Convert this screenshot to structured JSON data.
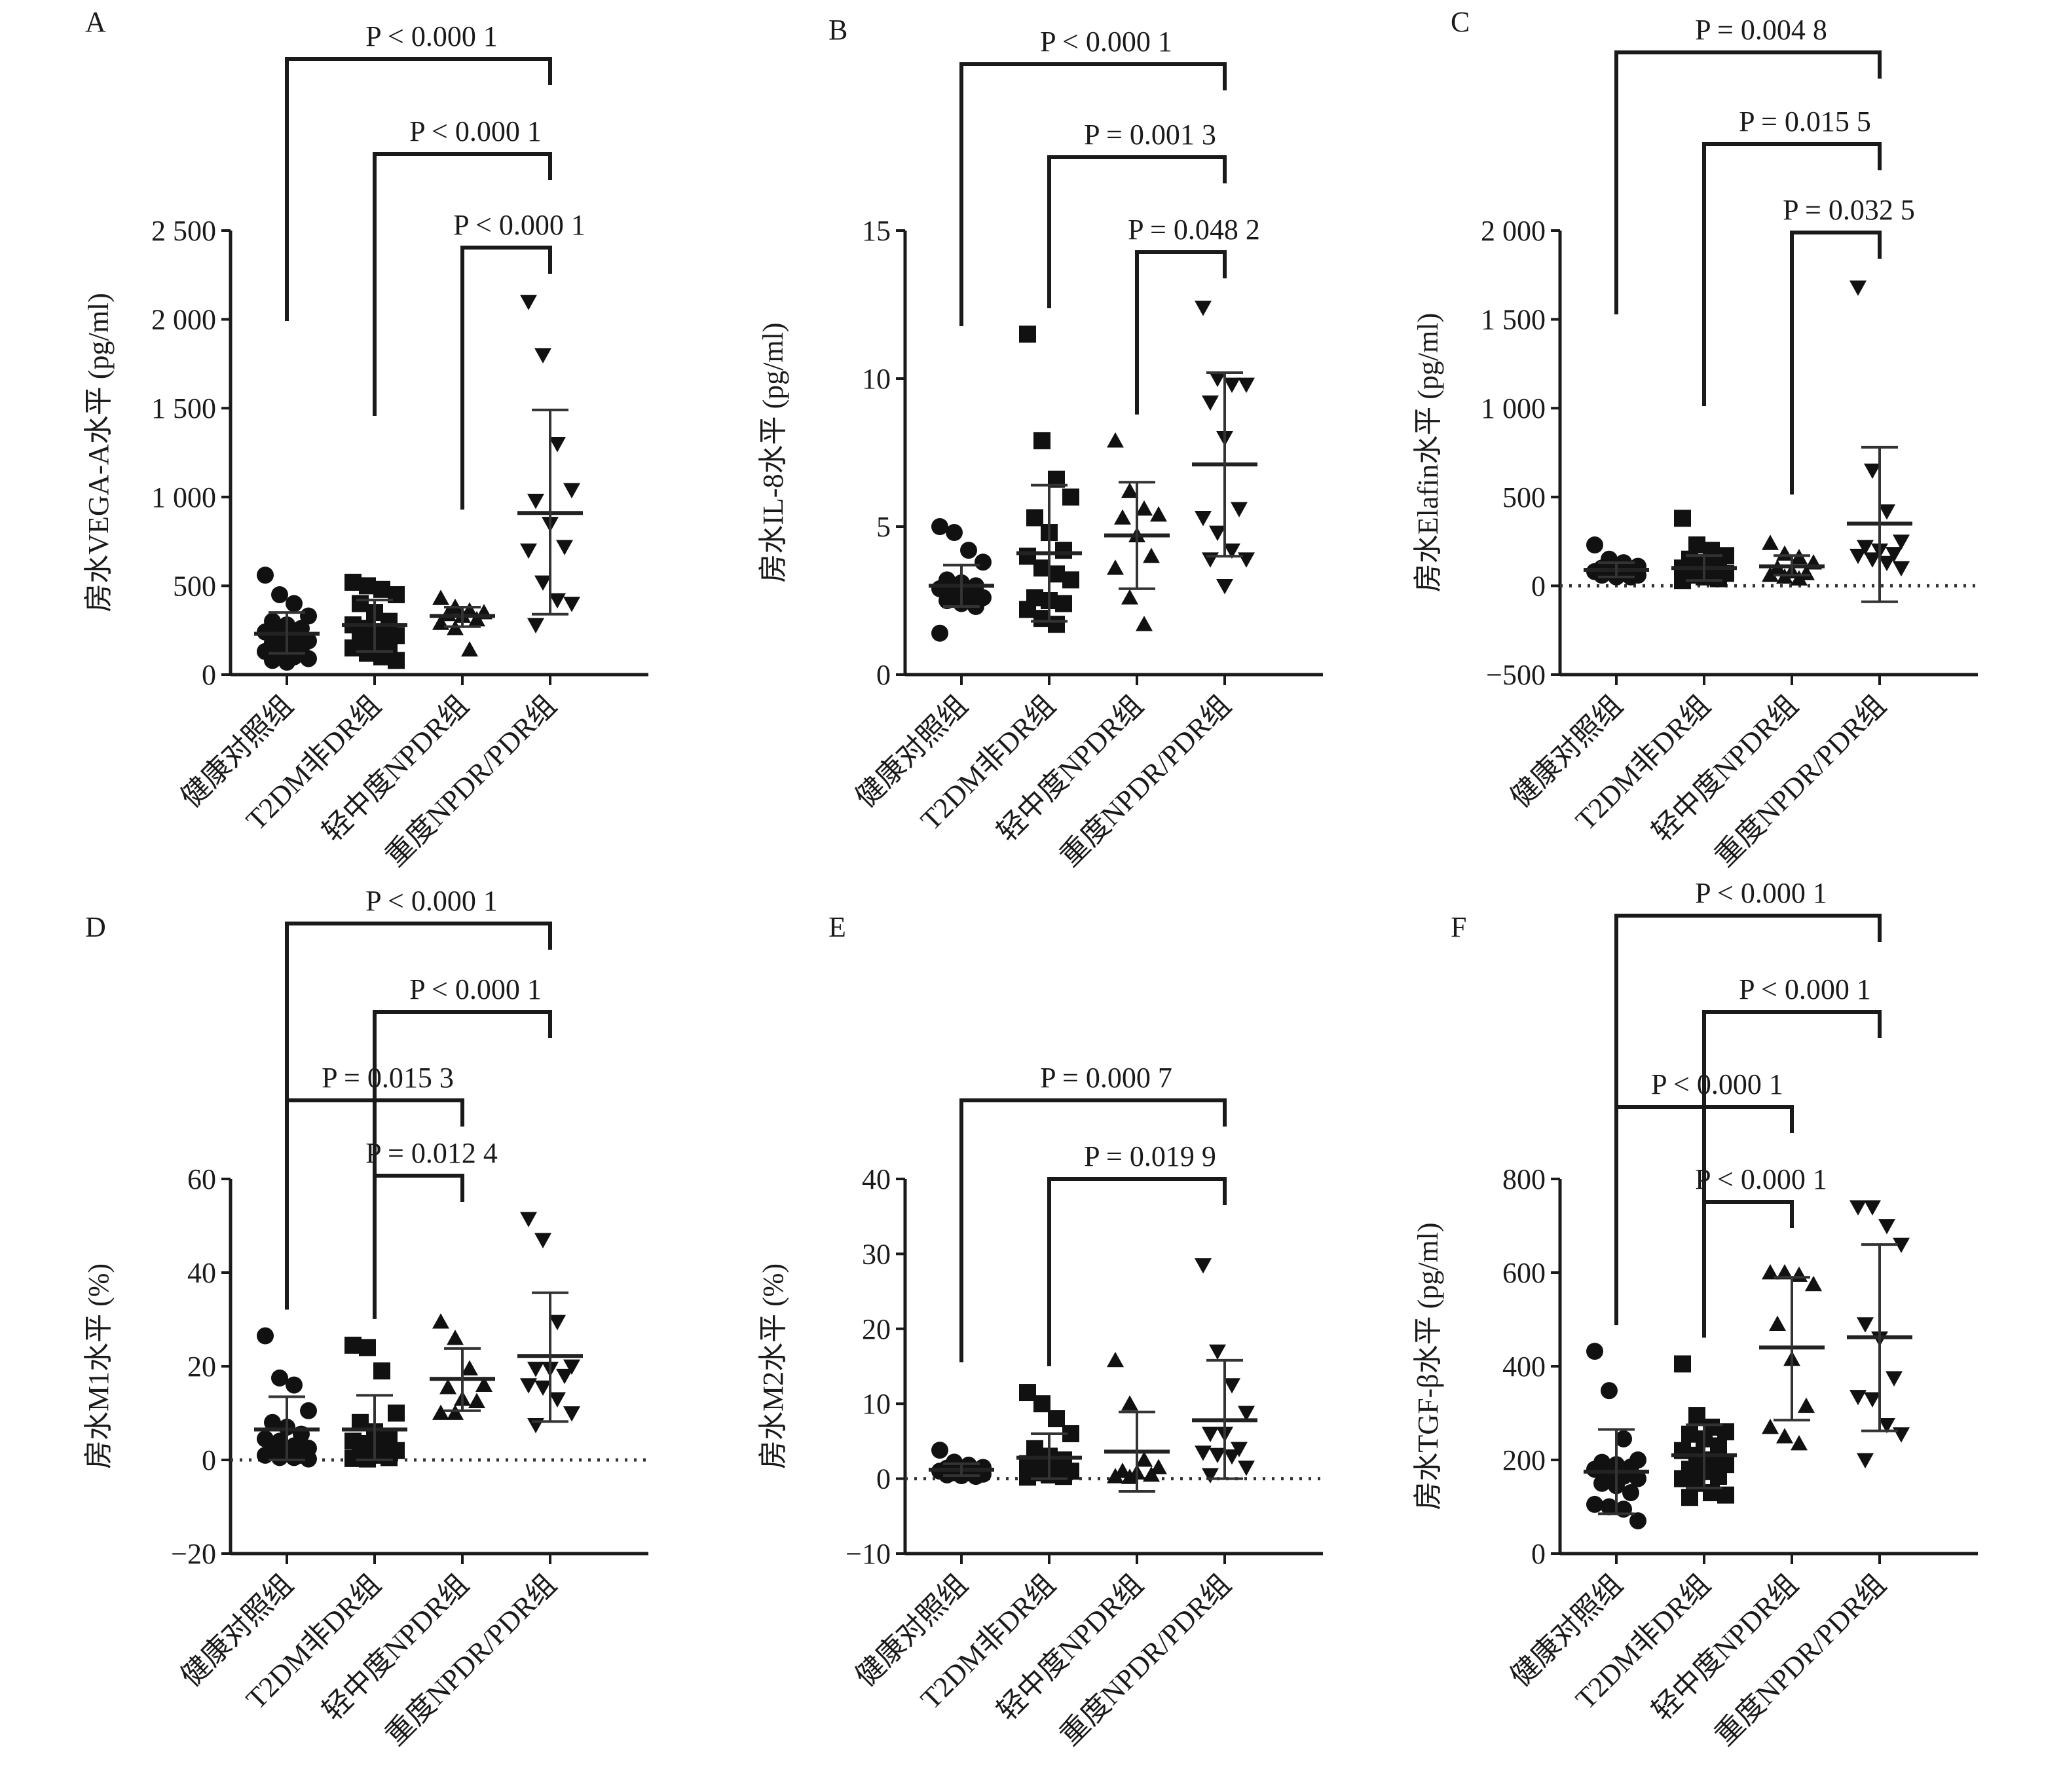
{
  "chart_data": [
    {
      "panel": "A",
      "type": "scatter",
      "ylabel": "房水VEGA-A水平 (pg/ml)",
      "categories": [
        "健康对照组",
        "T2DM非DR组",
        "轻中度NPDR组",
        "重度NPDR/PDR组"
      ],
      "ylim": [
        0,
        2500
      ],
      "yticks": [
        0,
        500,
        1000,
        1500,
        2000,
        2500
      ],
      "ytick_labels": [
        "0",
        "500",
        "1 000",
        "1 500",
        "2 000",
        "2 500"
      ],
      "zero_line": false,
      "groups": [
        {
          "marker": "circle",
          "mean": 230,
          "sd_low": 120,
          "sd_high": 350,
          "points": [
            560,
            450,
            400,
            330,
            300,
            280,
            260,
            240,
            220,
            200,
            190,
            180,
            160,
            150,
            130,
            120,
            100,
            90,
            80,
            70
          ]
        },
        {
          "marker": "square",
          "mean": 280,
          "sd_low": 130,
          "sd_high": 420,
          "points": [
            520,
            500,
            480,
            450,
            400,
            350,
            300,
            280,
            260,
            240,
            220,
            200,
            180,
            170,
            150,
            120,
            100,
            80
          ]
        },
        {
          "marker": "triangle-up",
          "mean": 330,
          "sd_low": 270,
          "sd_high": 380,
          "points": [
            430,
            380,
            360,
            350,
            340,
            330,
            310,
            290,
            260,
            140
          ]
        },
        {
          "marker": "triangle-down",
          "mean": 910,
          "sd_low": 340,
          "sd_high": 1490,
          "points": [
            2100,
            1800,
            1300,
            1040,
            980,
            850,
            720,
            700,
            520,
            420,
            400,
            280
          ]
        }
      ],
      "comparisons": [
        {
          "from": 0,
          "to": 3,
          "label": "P < 0.000 1"
        },
        {
          "from": 1,
          "to": 3,
          "label": "P < 0.000 1"
        },
        {
          "from": 2,
          "to": 3,
          "label": "P < 0.000 1"
        }
      ]
    },
    {
      "panel": "B",
      "type": "scatter",
      "ylabel": "房水IL-8水平 (pg/ml)",
      "categories": [
        "健康对照组",
        "T2DM非DR组",
        "轻中度NPDR组",
        "重度NPDR/PDR组"
      ],
      "ylim": [
        0,
        15
      ],
      "yticks": [
        0,
        5,
        10,
        15
      ],
      "ytick_labels": [
        "0",
        "5",
        "10",
        "15"
      ],
      "zero_line": false,
      "groups": [
        {
          "marker": "circle",
          "mean": 3.0,
          "sd_low": 2.3,
          "sd_high": 3.7,
          "points": [
            5.0,
            4.8,
            4.2,
            3.8,
            3.2,
            3.1,
            3.0,
            2.9,
            2.8,
            2.7,
            2.6,
            2.5,
            2.4,
            2.3,
            1.4
          ]
        },
        {
          "marker": "square",
          "mean": 4.1,
          "sd_low": 1.8,
          "sd_high": 6.4,
          "points": [
            11.5,
            7.9,
            6.6,
            6.0,
            5.3,
            4.8,
            4.2,
            4.0,
            3.6,
            3.4,
            3.2,
            2.6,
            2.5,
            2.4,
            2.2,
            1.9,
            1.7
          ]
        },
        {
          "marker": "triangle-up",
          "mean": 4.7,
          "sd_low": 2.9,
          "sd_high": 6.5,
          "points": [
            7.9,
            6.2,
            5.6,
            5.4,
            5.3,
            4.7,
            4.0,
            3.6,
            2.6,
            1.7
          ]
        },
        {
          "marker": "triangle-down",
          "mean": 7.1,
          "sd_low": 4.0,
          "sd_high": 10.2,
          "points": [
            12.4,
            10.0,
            9.8,
            9.8,
            9.2,
            8.0,
            5.6,
            5.3,
            4.8,
            4.2,
            3.9,
            3.9,
            3.0
          ]
        }
      ],
      "comparisons": [
        {
          "from": 0,
          "to": 3,
          "label": "P < 0.000 1"
        },
        {
          "from": 1,
          "to": 3,
          "label": "P = 0.001 3"
        },
        {
          "from": 2,
          "to": 3,
          "label": "P = 0.048 2"
        }
      ]
    },
    {
      "panel": "C",
      "type": "scatter",
      "ylabel": "房水Elafin水平 (pg/ml)",
      "categories": [
        "健康对照组",
        "T2DM非DR组",
        "轻中度NPDR组",
        "重度NPDR/PDR组"
      ],
      "ylim": [
        -500,
        2000
      ],
      "yticks": [
        -500,
        0,
        500,
        1000,
        1500,
        2000
      ],
      "ytick_labels": [
        "−500",
        "0",
        "500",
        "1 000",
        "1 500",
        "2 000"
      ],
      "zero_line": true,
      "groups": [
        {
          "marker": "circle",
          "mean": 90,
          "sd_low": 50,
          "sd_high": 130,
          "points": [
            230,
            150,
            130,
            110,
            100,
            90,
            90,
            80,
            80,
            70,
            60,
            60,
            50,
            50
          ]
        },
        {
          "marker": "square",
          "mean": 100,
          "sd_low": 30,
          "sd_high": 170,
          "points": [
            380,
            230,
            200,
            170,
            150,
            130,
            110,
            100,
            90,
            80,
            70,
            60,
            50,
            40,
            30
          ]
        },
        {
          "marker": "triangle-up",
          "mean": 110,
          "sd_low": 60,
          "sd_high": 170,
          "points": [
            240,
            180,
            160,
            130,
            100,
            80,
            70,
            60,
            50,
            40
          ]
        },
        {
          "marker": "triangle-down",
          "mean": 350,
          "sd_low": -90,
          "sd_high": 780,
          "points": [
            1680,
            650,
            420,
            250,
            220,
            200,
            180,
            170,
            150,
            130,
            100
          ]
        }
      ],
      "comparisons": [
        {
          "from": 0,
          "to": 3,
          "label": "P = 0.004 8"
        },
        {
          "from": 1,
          "to": 3,
          "label": "P = 0.015 5"
        },
        {
          "from": 2,
          "to": 3,
          "label": "P = 0.032 5"
        }
      ]
    },
    {
      "panel": "D",
      "type": "scatter",
      "ylabel": "房水M1水平 (%)",
      "categories": [
        "健康对照组",
        "T2DM非DR组",
        "轻中度NPDR组",
        "重度NPDR/PDR组"
      ],
      "ylim": [
        -20,
        60
      ],
      "yticks": [
        -20,
        0,
        20,
        40,
        60
      ],
      "ytick_labels": [
        "−20",
        "0",
        "20",
        "40",
        "60"
      ],
      "zero_line": true,
      "groups": [
        {
          "marker": "circle",
          "mean": 6.5,
          "sd_low": 0,
          "sd_high": 13.5,
          "points": [
            26.5,
            17.5,
            16.0,
            10.5,
            8.0,
            7.0,
            5.5,
            4.5,
            4.0,
            3.0,
            2.5,
            2.0,
            1.5,
            1.0,
            1.0,
            0.5,
            0.5,
            0.2
          ]
        },
        {
          "marker": "square",
          "mean": 6.5,
          "sd_low": 0,
          "sd_high": 13.8,
          "points": [
            24.5,
            24.0,
            19.0,
            10.0,
            8.0,
            6.0,
            5.0,
            4.0,
            3.5,
            3.0,
            2.0,
            1.5,
            1.0,
            0.5,
            0.3,
            0.2
          ]
        },
        {
          "marker": "triangle-up",
          "mean": 17.3,
          "sd_low": 10.5,
          "sd_high": 23.8,
          "points": [
            29.5,
            26.0,
            19.5,
            16.0,
            15.5,
            13.0,
            12.5,
            10.0,
            10.0
          ]
        },
        {
          "marker": "triangle-down",
          "mean": 22.2,
          "sd_low": 8.2,
          "sd_high": 35.7,
          "points": [
            51.5,
            47.0,
            29.5,
            20.0,
            19.5,
            19.5,
            18.0,
            16.0,
            15.5,
            13.0,
            10.0,
            7.5
          ]
        }
      ],
      "comparisons": [
        {
          "from": 0,
          "to": 3,
          "label": "P < 0.000 1"
        },
        {
          "from": 1,
          "to": 3,
          "label": "P < 0.000 1"
        },
        {
          "from": 0,
          "to": 2,
          "label": "P = 0.015 3"
        },
        {
          "from": 1,
          "to": 2,
          "label": "P = 0.012 4"
        }
      ]
    },
    {
      "panel": "E",
      "type": "scatter",
      "ylabel": "房水M2水平 (%)",
      "categories": [
        "健康对照组",
        "T2DM非DR组",
        "轻中度NPDR组",
        "重度NPDR/PDR组"
      ],
      "ylim": [
        -10,
        40
      ],
      "yticks": [
        -10,
        0,
        10,
        20,
        30,
        40
      ],
      "ytick_labels": [
        "−10",
        "0",
        "10",
        "20",
        "30",
        "40"
      ],
      "zero_line": true,
      "groups": [
        {
          "marker": "circle",
          "mean": 1.2,
          "sd_low": 0.4,
          "sd_high": 2.0,
          "points": [
            3.8,
            2.2,
            1.8,
            1.5,
            1.4,
            1.2,
            1.0,
            1.0,
            0.8,
            0.8,
            0.6,
            0.5,
            0.4,
            0.3
          ]
        },
        {
          "marker": "square",
          "mean": 2.8,
          "sd_low": 0,
          "sd_high": 6.0,
          "points": [
            11.5,
            10.0,
            8.0,
            6.0,
            4.0,
            3.0,
            2.5,
            2.0,
            1.5,
            1.5,
            1.0,
            0.8,
            0.5,
            0.3,
            0.2
          ]
        },
        {
          "marker": "triangle-up",
          "mean": 3.6,
          "sd_low": -1.7,
          "sd_high": 8.9,
          "points": [
            15.8,
            10.0,
            2.5,
            1.5,
            1.0,
            0.8,
            0.5,
            0.3,
            0.2
          ]
        },
        {
          "marker": "triangle-down",
          "mean": 7.8,
          "sd_low": 0,
          "sd_high": 15.8,
          "points": [
            28.5,
            17.0,
            12.5,
            8.8,
            6.0,
            6.0,
            4.0,
            3.5,
            3.2,
            3.0,
            1.5,
            0.5
          ]
        }
      ],
      "comparisons": [
        {
          "from": 0,
          "to": 3,
          "label": "P = 0.000 7"
        },
        {
          "from": 1,
          "to": 3,
          "label": "P = 0.019 9"
        }
      ]
    },
    {
      "panel": "F",
      "type": "scatter",
      "ylabel": "房水TGF-β水平 (pg/ml)",
      "categories": [
        "健康对照组",
        "T2DM非DR组",
        "轻中度NPDR组",
        "重度NPDR/PDR组"
      ],
      "ylim": [
        0,
        800
      ],
      "yticks": [
        0,
        200,
        400,
        600,
        800
      ],
      "ytick_labels": [
        "0",
        "200",
        "400",
        "600",
        "800"
      ],
      "zero_line": false,
      "groups": [
        {
          "marker": "circle",
          "mean": 175,
          "sd_low": 85,
          "sd_high": 265,
          "points": [
            432,
            348,
            245,
            200,
            195,
            190,
            185,
            180,
            170,
            165,
            160,
            150,
            145,
            130,
            105,
            100,
            95,
            70
          ]
        },
        {
          "marker": "square",
          "mean": 210,
          "sd_low": 140,
          "sd_high": 275,
          "points": [
            405,
            295,
            270,
            260,
            255,
            245,
            230,
            220,
            210,
            200,
            190,
            180,
            175,
            165,
            160,
            150,
            130,
            125,
            120
          ]
        },
        {
          "marker": "triangle-up",
          "mean": 440,
          "sd_low": 285,
          "sd_high": 590,
          "points": [
            600,
            600,
            595,
            575,
            490,
            415,
            315,
            270,
            250,
            235
          ]
        },
        {
          "marker": "triangle-down",
          "mean": 462,
          "sd_low": 262,
          "sd_high": 660,
          "points": [
            740,
            740,
            700,
            660,
            490,
            460,
            375,
            335,
            330,
            275,
            255,
            200
          ]
        }
      ],
      "comparisons": [
        {
          "from": 0,
          "to": 3,
          "label": "P < 0.000 1"
        },
        {
          "from": 1,
          "to": 3,
          "label": "P < 0.000 1"
        },
        {
          "from": 0,
          "to": 2,
          "label": "P < 0.000 1"
        },
        {
          "from": 1,
          "to": 2,
          "label": "P < 0.000 1"
        }
      ]
    }
  ]
}
